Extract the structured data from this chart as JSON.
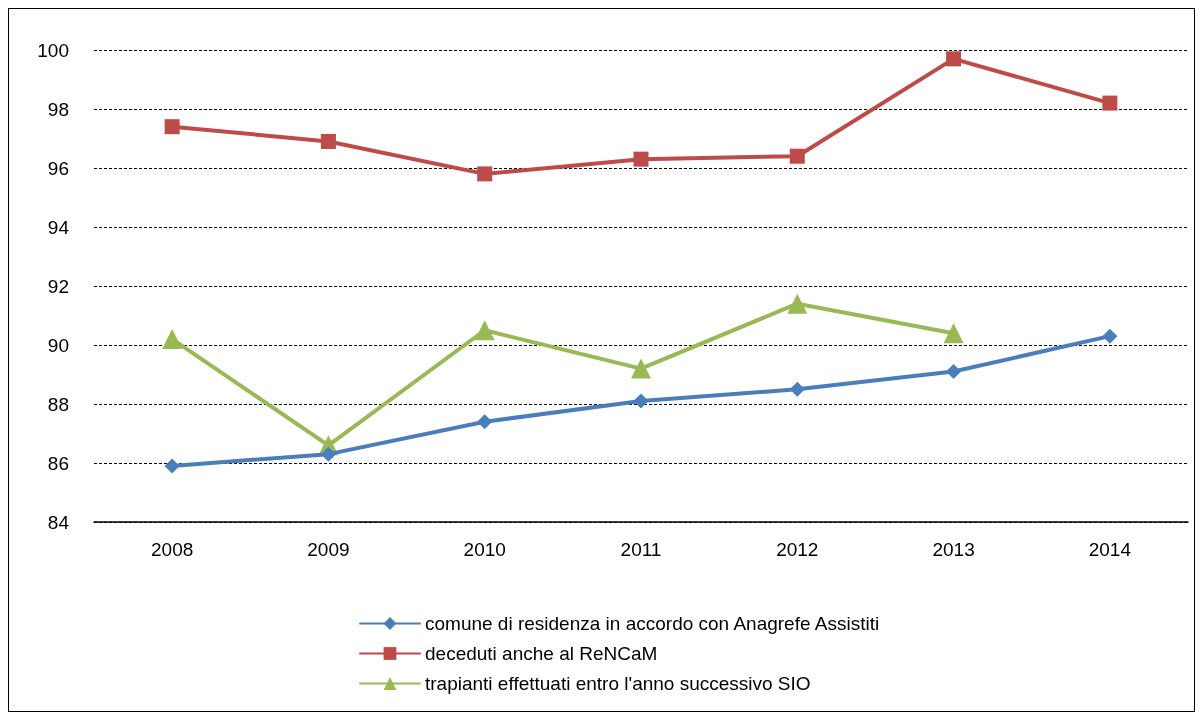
{
  "chart_data": {
    "type": "line",
    "categories": [
      "2008",
      "2009",
      "2010",
      "2011",
      "2012",
      "2013",
      "2014"
    ],
    "series": [
      {
        "name": "comune di residenza in accordo con Anagrefe Assistiti",
        "color": "#4a7ebb",
        "marker": "diamond",
        "values": [
          85.9,
          86.3,
          87.4,
          88.1,
          88.5,
          89.1,
          90.3
        ]
      },
      {
        "name": "deceduti anche al ReNCaM",
        "color": "#be4b48",
        "marker": "square",
        "values": [
          97.4,
          96.9,
          95.8,
          96.3,
          96.4,
          99.7,
          98.2
        ]
      },
      {
        "name": "trapianti effettuati entro l'anno successivo SIO",
        "color": "#98b954",
        "marker": "triangle",
        "values": [
          90.2,
          86.6,
          90.5,
          89.2,
          91.4,
          90.4,
          null
        ]
      }
    ],
    "ylim": [
      84,
      100
    ],
    "yticks": [
      84,
      86,
      88,
      90,
      92,
      94,
      96,
      98,
      100
    ],
    "grid": "y",
    "legend": "bottom",
    "line_style": "solid"
  }
}
